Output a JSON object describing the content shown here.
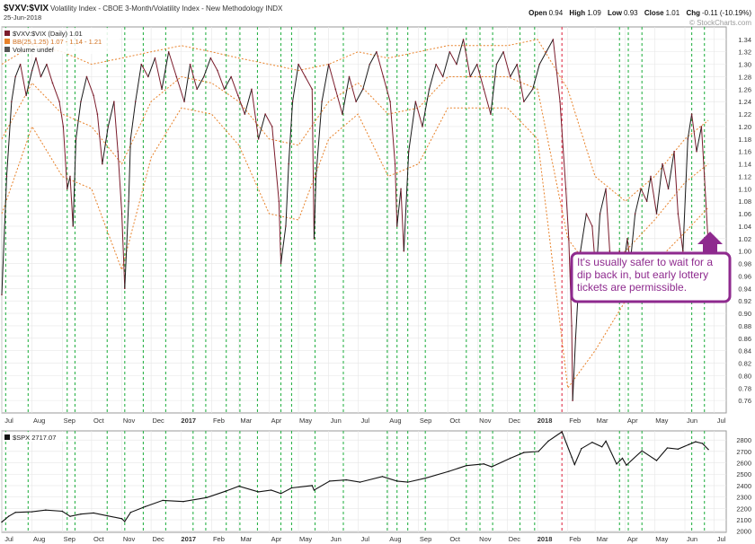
{
  "header": {
    "symbol": "$VXV:$VIX",
    "description": "Volatility Index - CBOE 3-Month/Volatility Index - New Methodology  INDX",
    "date": "25-Jun-2018",
    "ohlc": [
      {
        "label": "Open",
        "value": "0.94"
      },
      {
        "label": "High",
        "value": "1.09"
      },
      {
        "label": "Low",
        "value": "0.93"
      },
      {
        "label": "Close",
        "value": "1.01"
      },
      {
        "label": "Chg",
        "value": "-0.11 (-10.19%)"
      }
    ],
    "watermark": "© StockCharts.com"
  },
  "colors": {
    "ratio_line": "#7b1c2c",
    "ratio_up": "#1a1a1a",
    "bands": "#e8822a",
    "signal_green": "#2db34a",
    "signal_red": "#e0304a",
    "annotation": "#8e2a8e",
    "spx_line": "#111111",
    "grid": "#e6e6e6"
  },
  "callout": {
    "text": "It's usually safer to wait for a dip back in, but early lottery tickets are permissible."
  },
  "chart_data": [
    {
      "type": "line",
      "name": "upper-panel",
      "legend": [
        {
          "label": "$VXV:$VIX (Daily) 1.01",
          "color": "#7b1c2c"
        },
        {
          "label": "BB(25,1.25) 1.07 - 1.14 - 1.21",
          "color": "#e8822a"
        },
        {
          "label": "Volume undef",
          "color": "#555555"
        }
      ],
      "ylim": [
        0.74,
        1.36
      ],
      "y_ticks": [
        0.76,
        0.78,
        0.8,
        0.82,
        0.84,
        0.86,
        0.88,
        0.9,
        0.92,
        0.94,
        0.96,
        0.98,
        1.0,
        1.02,
        1.04,
        1.06,
        1.08,
        1.1,
        1.12,
        1.14,
        1.16,
        1.18,
        1.2,
        1.22,
        1.24,
        1.26,
        1.28,
        1.3,
        1.32,
        1.34
      ],
      "x_range": [
        "2016-07-01",
        "2018-07-06"
      ],
      "months": [
        {
          "label": "Jul",
          "date": "2016-07-01",
          "bold": false
        },
        {
          "label": "Aug",
          "date": "2016-08-01",
          "bold": false
        },
        {
          "label": "Sep",
          "date": "2016-09-01",
          "bold": false
        },
        {
          "label": "Oct",
          "date": "2016-10-01",
          "bold": false
        },
        {
          "label": "Nov",
          "date": "2016-11-01",
          "bold": false
        },
        {
          "label": "Dec",
          "date": "2016-12-01",
          "bold": false
        },
        {
          "label": "2017",
          "date": "2017-01-01",
          "bold": true
        },
        {
          "label": "Feb",
          "date": "2017-02-01",
          "bold": false
        },
        {
          "label": "Mar",
          "date": "2017-03-01",
          "bold": false
        },
        {
          "label": "Apr",
          "date": "2017-04-01",
          "bold": false
        },
        {
          "label": "May",
          "date": "2017-05-01",
          "bold": false
        },
        {
          "label": "Jun",
          "date": "2017-06-01",
          "bold": false
        },
        {
          "label": "Jul",
          "date": "2017-07-01",
          "bold": false
        },
        {
          "label": "Aug",
          "date": "2017-08-01",
          "bold": false
        },
        {
          "label": "Sep",
          "date": "2017-09-01",
          "bold": false
        },
        {
          "label": "Oct",
          "date": "2017-10-01",
          "bold": false
        },
        {
          "label": "Nov",
          "date": "2017-11-01",
          "bold": false
        },
        {
          "label": "Dec",
          "date": "2017-12-01",
          "bold": false
        },
        {
          "label": "2018",
          "date": "2018-01-01",
          "bold": true
        },
        {
          "label": "Feb",
          "date": "2018-02-01",
          "bold": false
        },
        {
          "label": "Mar",
          "date": "2018-03-01",
          "bold": false
        },
        {
          "label": "Apr",
          "date": "2018-04-01",
          "bold": false
        },
        {
          "label": "May",
          "date": "2018-05-01",
          "bold": false
        },
        {
          "label": "Jun",
          "date": "2018-06-01",
          "bold": false
        },
        {
          "label": "Jul",
          "date": "2018-07-01",
          "bold": false
        }
      ],
      "signals_green": [
        "2016-07-05",
        "2016-07-28",
        "2016-09-06",
        "2016-09-14",
        "2016-10-17",
        "2016-11-04",
        "2016-11-23",
        "2016-12-16",
        "2017-01-13",
        "2017-01-26",
        "2017-02-16",
        "2017-03-02",
        "2017-03-20",
        "2017-04-13",
        "2017-04-24",
        "2017-05-18",
        "2017-06-16",
        "2017-07-31",
        "2017-08-10",
        "2017-08-21",
        "2017-09-08",
        "2017-10-20",
        "2017-11-03",
        "2017-11-16",
        "2017-12-14",
        "2017-12-29",
        "2018-03-26",
        "2018-04-04",
        "2018-04-18",
        "2018-06-08",
        "2018-06-21"
      ],
      "signals_red": [
        "2018-01-26"
      ],
      "series": [
        {
          "name": "$VXV:$VIX",
          "x": [
            "2016-07-01",
            "2016-07-06",
            "2016-07-11",
            "2016-07-15",
            "2016-07-20",
            "2016-07-26",
            "2016-08-01",
            "2016-08-05",
            "2016-08-10",
            "2016-08-16",
            "2016-08-22",
            "2016-08-29",
            "2016-09-02",
            "2016-09-06",
            "2016-09-09",
            "2016-09-12",
            "2016-09-15",
            "2016-09-20",
            "2016-09-26",
            "2016-10-03",
            "2016-10-07",
            "2016-10-12",
            "2016-10-18",
            "2016-10-24",
            "2016-10-28",
            "2016-11-01",
            "2016-11-04",
            "2016-11-08",
            "2016-11-10",
            "2016-11-15",
            "2016-11-21",
            "2016-11-28",
            "2016-12-05",
            "2016-12-12",
            "2016-12-19",
            "2016-12-27",
            "2017-01-04",
            "2017-01-10",
            "2017-01-17",
            "2017-01-24",
            "2017-01-31",
            "2017-02-07",
            "2017-02-14",
            "2017-02-21",
            "2017-02-28",
            "2017-03-07",
            "2017-03-14",
            "2017-03-21",
            "2017-03-28",
            "2017-04-04",
            "2017-04-11",
            "2017-04-13",
            "2017-04-18",
            "2017-04-21",
            "2017-04-25",
            "2017-05-01",
            "2017-05-08",
            "2017-05-15",
            "2017-05-17",
            "2017-05-19",
            "2017-05-25",
            "2017-06-01",
            "2017-06-08",
            "2017-06-15",
            "2017-06-22",
            "2017-06-29",
            "2017-07-06",
            "2017-07-13",
            "2017-07-20",
            "2017-07-27",
            "2017-08-03",
            "2017-08-08",
            "2017-08-10",
            "2017-08-14",
            "2017-08-17",
            "2017-08-22",
            "2017-08-29",
            "2017-09-05",
            "2017-09-12",
            "2017-09-19",
            "2017-09-26",
            "2017-10-03",
            "2017-10-10",
            "2017-10-17",
            "2017-10-24",
            "2017-10-31",
            "2017-11-07",
            "2017-11-14",
            "2017-11-20",
            "2017-11-27",
            "2017-12-04",
            "2017-12-11",
            "2017-12-18",
            "2017-12-27",
            "2018-01-03",
            "2018-01-10",
            "2018-01-17",
            "2018-01-24",
            "2018-01-30",
            "2018-02-02",
            "2018-02-05",
            "2018-02-06",
            "2018-02-09",
            "2018-02-14",
            "2018-02-20",
            "2018-02-26",
            "2018-03-02",
            "2018-03-06",
            "2018-03-12",
            "2018-03-16",
            "2018-03-22",
            "2018-03-26",
            "2018-03-29",
            "2018-04-03",
            "2018-04-06",
            "2018-04-11",
            "2018-04-17",
            "2018-04-23",
            "2018-04-27",
            "2018-05-03",
            "2018-05-09",
            "2018-05-15",
            "2018-05-21",
            "2018-05-25",
            "2018-05-30",
            "2018-06-04",
            "2018-06-08",
            "2018-06-13",
            "2018-06-18",
            "2018-06-21",
            "2018-06-25"
          ],
          "values": [
            0.93,
            1.12,
            1.24,
            1.28,
            1.3,
            1.25,
            1.29,
            1.31,
            1.28,
            1.3,
            1.27,
            1.24,
            1.2,
            1.1,
            1.12,
            1.04,
            1.18,
            1.24,
            1.28,
            1.25,
            1.22,
            1.14,
            1.2,
            1.24,
            1.16,
            1.06,
            0.94,
            1.08,
            1.18,
            1.24,
            1.3,
            1.28,
            1.31,
            1.26,
            1.32,
            1.28,
            1.24,
            1.3,
            1.26,
            1.28,
            1.31,
            1.29,
            1.26,
            1.28,
            1.25,
            1.22,
            1.26,
            1.18,
            1.22,
            1.2,
            1.08,
            0.98,
            1.04,
            1.14,
            1.24,
            1.3,
            1.28,
            1.26,
            1.02,
            1.12,
            1.24,
            1.3,
            1.26,
            1.22,
            1.28,
            1.24,
            1.26,
            1.3,
            1.32,
            1.28,
            1.24,
            1.14,
            1.04,
            1.1,
            1.0,
            1.16,
            1.24,
            1.2,
            1.26,
            1.3,
            1.28,
            1.32,
            1.3,
            1.34,
            1.28,
            1.3,
            1.26,
            1.22,
            1.3,
            1.32,
            1.28,
            1.3,
            1.24,
            1.26,
            1.3,
            1.32,
            1.34,
            1.24,
            1.1,
            1.02,
            0.88,
            0.76,
            0.86,
            1.0,
            1.06,
            1.04,
            0.96,
            1.06,
            1.1,
            1.0,
            0.94,
            1.0,
            0.96,
            1.02,
            0.98,
            1.06,
            1.1,
            1.08,
            1.12,
            1.06,
            1.14,
            1.1,
            1.16,
            1.06,
            1.0,
            1.18,
            1.22,
            1.16,
            1.2,
            1.12,
            1.01
          ]
        },
        {
          "name": "BB upper",
          "x": [
            "2016-07-01",
            "2016-08-01",
            "2016-09-01",
            "2016-10-01",
            "2016-11-01",
            "2016-12-01",
            "2017-01-01",
            "2017-02-01",
            "2017-03-01",
            "2017-04-01",
            "2017-05-01",
            "2017-06-01",
            "2017-07-01",
            "2017-08-01",
            "2017-09-01",
            "2017-10-01",
            "2017-11-01",
            "2017-12-01",
            "2018-01-01",
            "2018-02-01",
            "2018-03-01",
            "2018-04-01",
            "2018-05-01",
            "2018-06-01",
            "2018-06-25"
          ],
          "values": [
            1.3,
            1.33,
            1.32,
            1.3,
            1.31,
            1.32,
            1.33,
            1.32,
            1.31,
            1.3,
            1.29,
            1.3,
            1.32,
            1.31,
            1.32,
            1.33,
            1.33,
            1.33,
            1.34,
            1.26,
            1.12,
            1.08,
            1.12,
            1.18,
            1.21
          ]
        },
        {
          "name": "BB middle",
          "x": [
            "2016-07-01",
            "2016-08-01",
            "2016-09-01",
            "2016-10-01",
            "2016-11-01",
            "2016-12-01",
            "2017-01-01",
            "2017-02-01",
            "2017-03-01",
            "2017-04-01",
            "2017-05-01",
            "2017-06-01",
            "2017-07-01",
            "2017-08-01",
            "2017-09-01",
            "2017-10-01",
            "2017-11-01",
            "2017-12-01",
            "2018-01-01",
            "2018-02-01",
            "2018-03-01",
            "2018-04-01",
            "2018-05-01",
            "2018-06-01",
            "2018-06-25"
          ],
          "values": [
            1.18,
            1.27,
            1.22,
            1.2,
            1.14,
            1.24,
            1.28,
            1.27,
            1.24,
            1.18,
            1.17,
            1.24,
            1.27,
            1.22,
            1.23,
            1.28,
            1.28,
            1.28,
            1.26,
            1.02,
            0.96,
            1.0,
            1.05,
            1.11,
            1.14
          ]
        },
        {
          "name": "BB lower",
          "x": [
            "2016-07-01",
            "2016-08-01",
            "2016-09-01",
            "2016-10-01",
            "2016-11-01",
            "2016-12-01",
            "2017-01-01",
            "2017-02-01",
            "2017-03-01",
            "2017-04-01",
            "2017-05-01",
            "2017-06-01",
            "2017-07-01",
            "2017-08-01",
            "2017-09-01",
            "2017-10-01",
            "2017-11-01",
            "2017-12-01",
            "2018-01-01",
            "2018-02-01",
            "2018-03-01",
            "2018-04-01",
            "2018-05-01",
            "2018-06-01",
            "2018-06-25"
          ],
          "values": [
            1.06,
            1.2,
            1.12,
            1.1,
            0.97,
            1.15,
            1.23,
            1.22,
            1.17,
            1.06,
            1.05,
            1.18,
            1.22,
            1.12,
            1.14,
            1.23,
            1.23,
            1.23,
            1.18,
            0.78,
            0.84,
            0.92,
            0.98,
            1.03,
            1.07
          ]
        }
      ]
    },
    {
      "type": "line",
      "name": "lower-panel",
      "legend": [
        {
          "label": "$SPX 2717.07",
          "color": "#111111"
        }
      ],
      "ylim": [
        1990,
        2880
      ],
      "y_ticks": [
        2000,
        2100,
        2200,
        2300,
        2400,
        2500,
        2600,
        2700,
        2800
      ],
      "series": [
        {
          "name": "$SPX",
          "x": [
            "2016-07-01",
            "2016-07-08",
            "2016-07-15",
            "2016-08-01",
            "2016-08-15",
            "2016-09-01",
            "2016-09-09",
            "2016-09-20",
            "2016-10-03",
            "2016-10-17",
            "2016-11-01",
            "2016-11-04",
            "2016-11-10",
            "2016-11-25",
            "2016-12-13",
            "2017-01-03",
            "2017-01-27",
            "2017-02-15",
            "2017-03-01",
            "2017-03-21",
            "2017-04-03",
            "2017-04-13",
            "2017-04-24",
            "2017-05-15",
            "2017-05-17",
            "2017-06-02",
            "2017-06-19",
            "2017-07-03",
            "2017-07-26",
            "2017-08-10",
            "2017-08-21",
            "2017-09-08",
            "2017-10-02",
            "2017-10-20",
            "2017-11-07",
            "2017-11-15",
            "2017-12-04",
            "2017-12-18",
            "2018-01-02",
            "2018-01-12",
            "2018-01-26",
            "2018-02-05",
            "2018-02-08",
            "2018-02-15",
            "2018-02-26",
            "2018-03-08",
            "2018-03-12",
            "2018-03-23",
            "2018-03-29",
            "2018-04-02",
            "2018-04-18",
            "2018-05-03",
            "2018-05-14",
            "2018-05-25",
            "2018-06-05",
            "2018-06-12",
            "2018-06-19",
            "2018-06-25"
          ],
          "values": [
            2080,
            2130,
            2165,
            2170,
            2185,
            2175,
            2130,
            2150,
            2160,
            2135,
            2110,
            2085,
            2165,
            2215,
            2270,
            2260,
            2295,
            2350,
            2395,
            2345,
            2360,
            2330,
            2380,
            2400,
            2360,
            2440,
            2450,
            2430,
            2480,
            2440,
            2430,
            2465,
            2525,
            2575,
            2590,
            2565,
            2640,
            2690,
            2700,
            2790,
            2872,
            2650,
            2585,
            2725,
            2780,
            2740,
            2790,
            2590,
            2640,
            2580,
            2705,
            2620,
            2730,
            2720,
            2760,
            2785,
            2770,
            2717
          ]
        }
      ]
    }
  ]
}
